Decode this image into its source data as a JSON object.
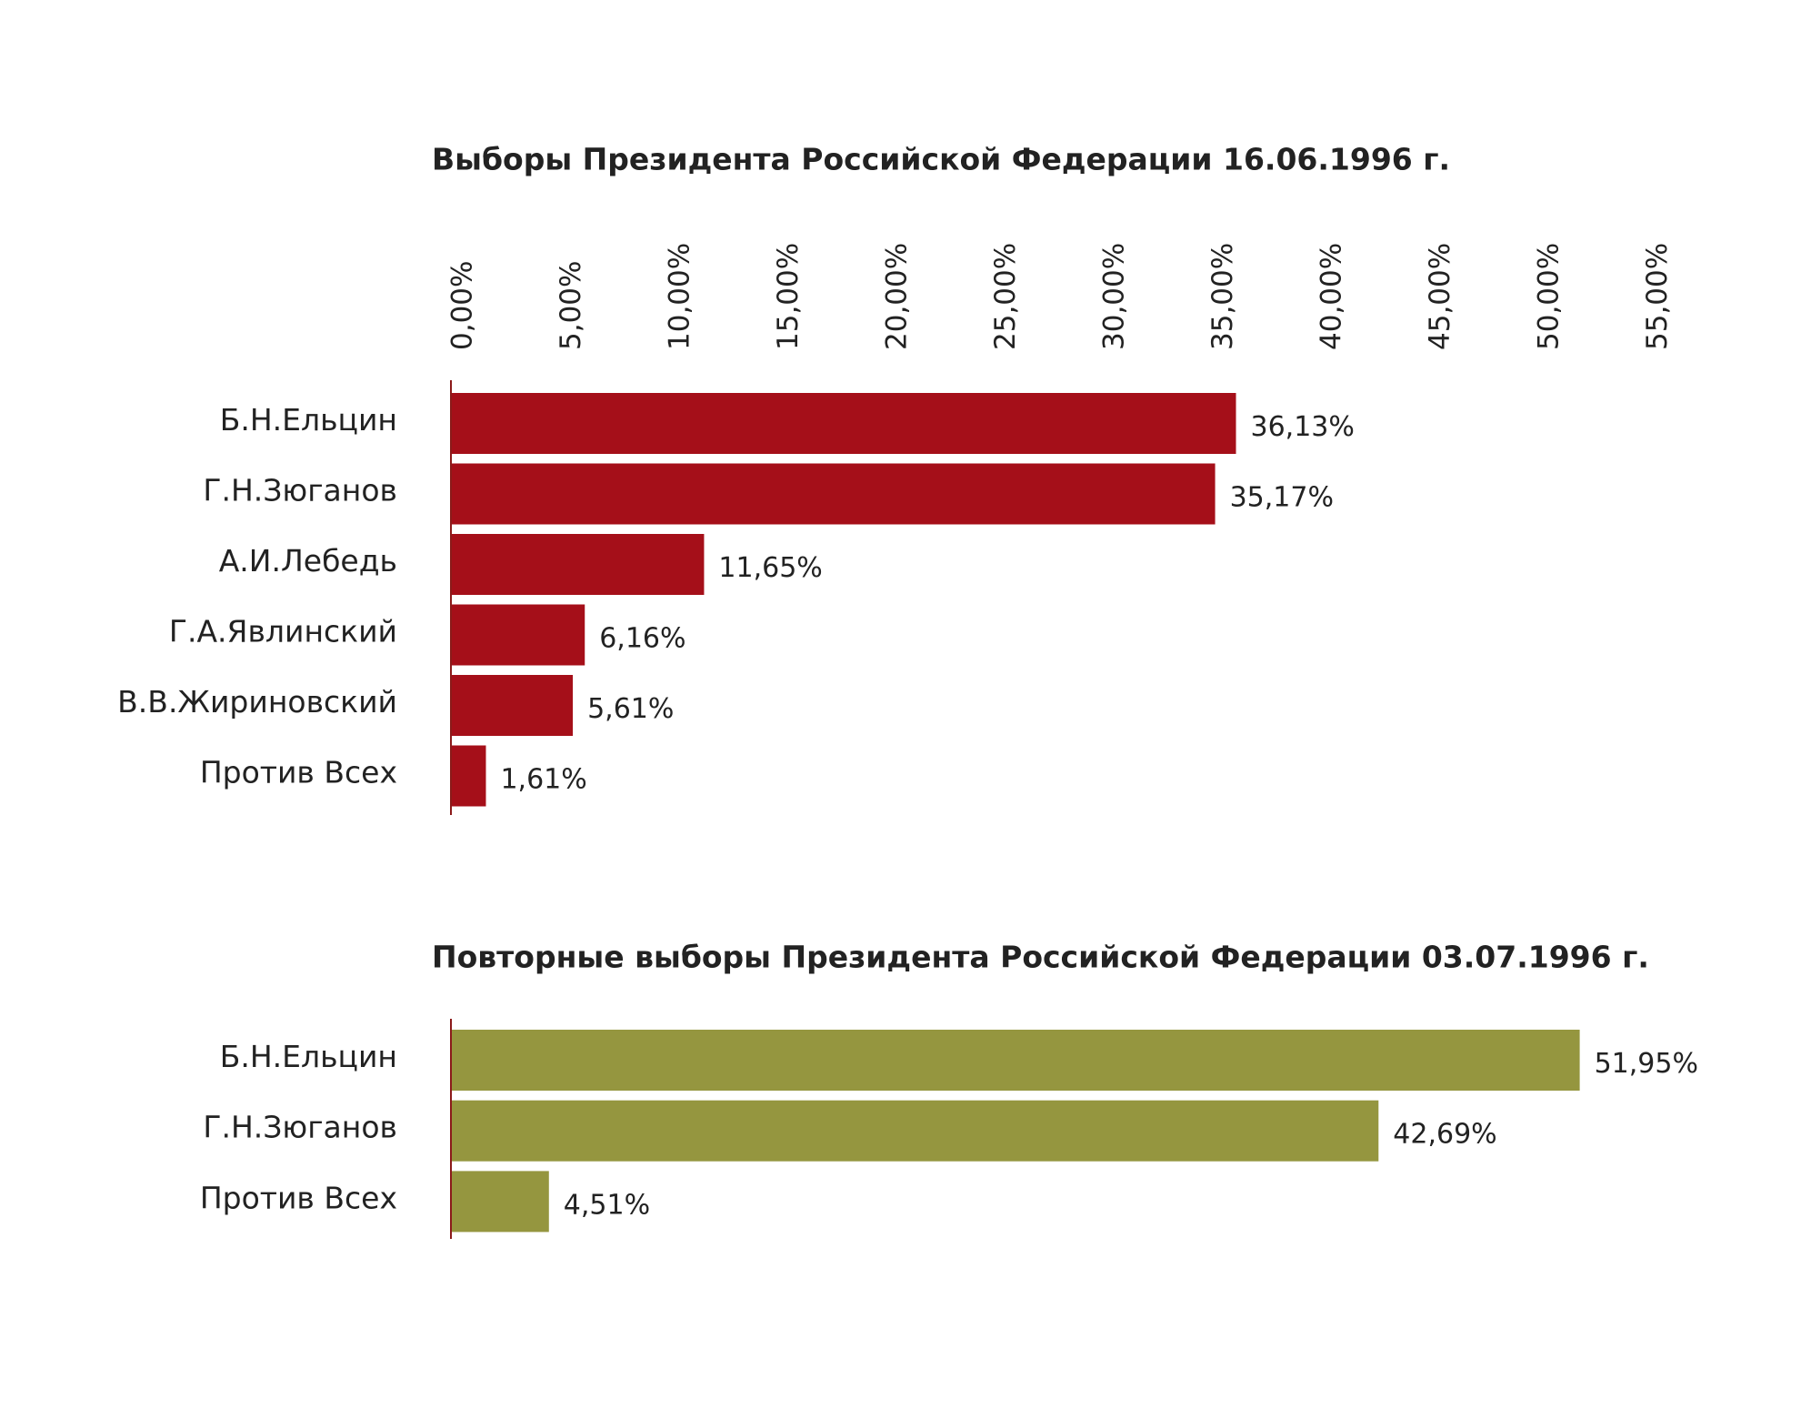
{
  "chart_data": [
    {
      "type": "barh",
      "title": "Выборы Президента Российской Федерации  16.06.1996 г.",
      "categories": [
        "Б.Н.Ельцин",
        "Г.Н.Зюганов",
        "А.И.Лебедь",
        "Г.А.Явлинский",
        "В.В.Жириновский",
        "Против Всех"
      ],
      "values": [
        36.13,
        35.17,
        11.65,
        6.16,
        5.61,
        1.61
      ],
      "value_labels": [
        "36,13%",
        "35,17%",
        "11,65%",
        "6,16%",
        "5,61%",
        "1,61%"
      ],
      "color": "#a50f19",
      "xlim": [
        0,
        55
      ],
      "xticks": [
        {
          "value": 0,
          "label": "0,00%"
        },
        {
          "value": 5,
          "label": "5,00%"
        },
        {
          "value": 10,
          "label": "10,00%"
        },
        {
          "value": 15,
          "label": "15,00%"
        },
        {
          "value": 20,
          "label": "20,00%"
        },
        {
          "value": 25,
          "label": "25,00%"
        },
        {
          "value": 30,
          "label": "30,00%"
        },
        {
          "value": 35,
          "label": "35,00%"
        },
        {
          "value": 40,
          "label": "40,00%"
        },
        {
          "value": 45,
          "label": "45,00%"
        },
        {
          "value": 50,
          "label": "50,00%"
        },
        {
          "value": 55,
          "label": "55,00%"
        }
      ]
    },
    {
      "type": "barh",
      "title": "Повторные выборы Президента Российской Федерации  03.07.1996 г.",
      "categories": [
        "Б.Н.Ельцин",
        "Г.Н.Зюганов",
        "Против Всех"
      ],
      "values": [
        51.95,
        42.69,
        4.51
      ],
      "value_labels": [
        "51,95%",
        "42,69%",
        "4,51%"
      ],
      "color": "#95963f",
      "xlim": [
        0,
        55
      ]
    }
  ]
}
